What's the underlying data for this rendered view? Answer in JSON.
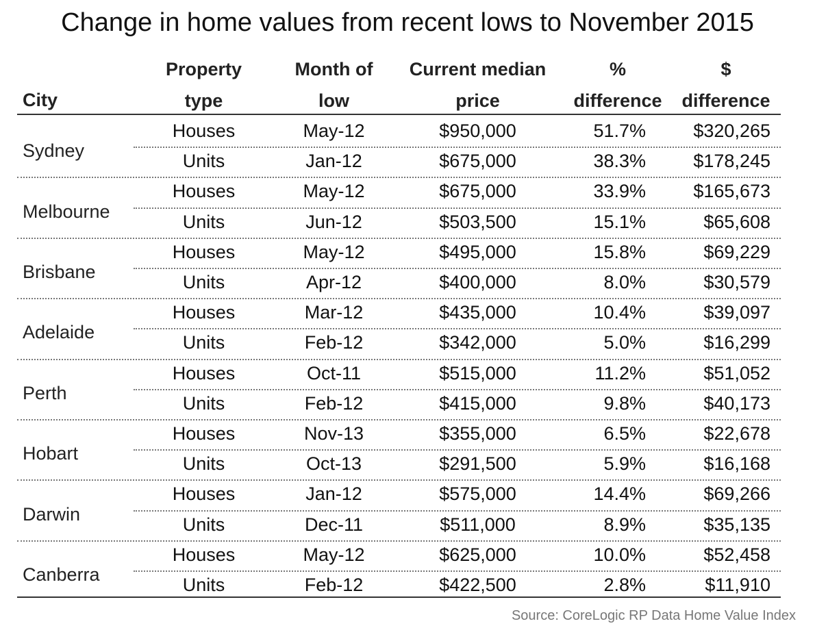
{
  "title": "Change in home values from recent lows to November 2015",
  "source": "Source: CoreLogic RP Data Home Value Index",
  "chart_data": {
    "type": "table",
    "title": "Change in home values from recent lows to November 2015",
    "columns": [
      {
        "key": "city",
        "line1": "",
        "line2": "City"
      },
      {
        "key": "type",
        "line1": "Property",
        "line2": "type"
      },
      {
        "key": "month",
        "line1": "Month of",
        "line2": "low"
      },
      {
        "key": "price",
        "line1": "Current median",
        "line2": "price"
      },
      {
        "key": "pct",
        "line1": "%",
        "line2": "difference"
      },
      {
        "key": "diff",
        "line1": "$",
        "line2": "difference"
      }
    ],
    "cities": [
      {
        "city": "Sydney",
        "rows": [
          {
            "type": "Houses",
            "month": "May-12",
            "price": "$950,000",
            "pct": "51.7%",
            "diff": "$320,265"
          },
          {
            "type": "Units",
            "month": "Jan-12",
            "price": "$675,000",
            "pct": "38.3%",
            "diff": "$178,245"
          }
        ]
      },
      {
        "city": "Melbourne",
        "rows": [
          {
            "type": "Houses",
            "month": "May-12",
            "price": "$675,000",
            "pct": "33.9%",
            "diff": "$165,673"
          },
          {
            "type": "Units",
            "month": "Jun-12",
            "price": "$503,500",
            "pct": "15.1%",
            "diff": "$65,608"
          }
        ]
      },
      {
        "city": "Brisbane",
        "rows": [
          {
            "type": "Houses",
            "month": "May-12",
            "price": "$495,000",
            "pct": "15.8%",
            "diff": "$69,229"
          },
          {
            "type": "Units",
            "month": "Apr-12",
            "price": "$400,000",
            "pct": "8.0%",
            "diff": "$30,579"
          }
        ]
      },
      {
        "city": "Adelaide",
        "rows": [
          {
            "type": "Houses",
            "month": "Mar-12",
            "price": "$435,000",
            "pct": "10.4%",
            "diff": "$39,097"
          },
          {
            "type": "Units",
            "month": "Feb-12",
            "price": "$342,000",
            "pct": "5.0%",
            "diff": "$16,299"
          }
        ]
      },
      {
        "city": "Perth",
        "rows": [
          {
            "type": "Houses",
            "month": "Oct-11",
            "price": "$515,000",
            "pct": "11.2%",
            "diff": "$51,052"
          },
          {
            "type": "Units",
            "month": "Feb-12",
            "price": "$415,000",
            "pct": "9.8%",
            "diff": "$40,173"
          }
        ]
      },
      {
        "city": "Hobart",
        "rows": [
          {
            "type": "Houses",
            "month": "Nov-13",
            "price": "$355,000",
            "pct": "6.5%",
            "diff": "$22,678"
          },
          {
            "type": "Units",
            "month": "Oct-13",
            "price": "$291,500",
            "pct": "5.9%",
            "diff": "$16,168"
          }
        ]
      },
      {
        "city": "Darwin",
        "rows": [
          {
            "type": "Houses",
            "month": "Jan-12",
            "price": "$575,000",
            "pct": "14.4%",
            "diff": "$69,266"
          },
          {
            "type": "Units",
            "month": "Dec-11",
            "price": "$511,000",
            "pct": "8.9%",
            "diff": "$35,135"
          }
        ]
      },
      {
        "city": "Canberra",
        "rows": [
          {
            "type": "Houses",
            "month": "May-12",
            "price": "$625,000",
            "pct": "10.0%",
            "diff": "$52,458"
          },
          {
            "type": "Units",
            "month": "Feb-12",
            "price": "$422,500",
            "pct": "2.8%",
            "diff": "$11,910"
          }
        ]
      }
    ]
  }
}
